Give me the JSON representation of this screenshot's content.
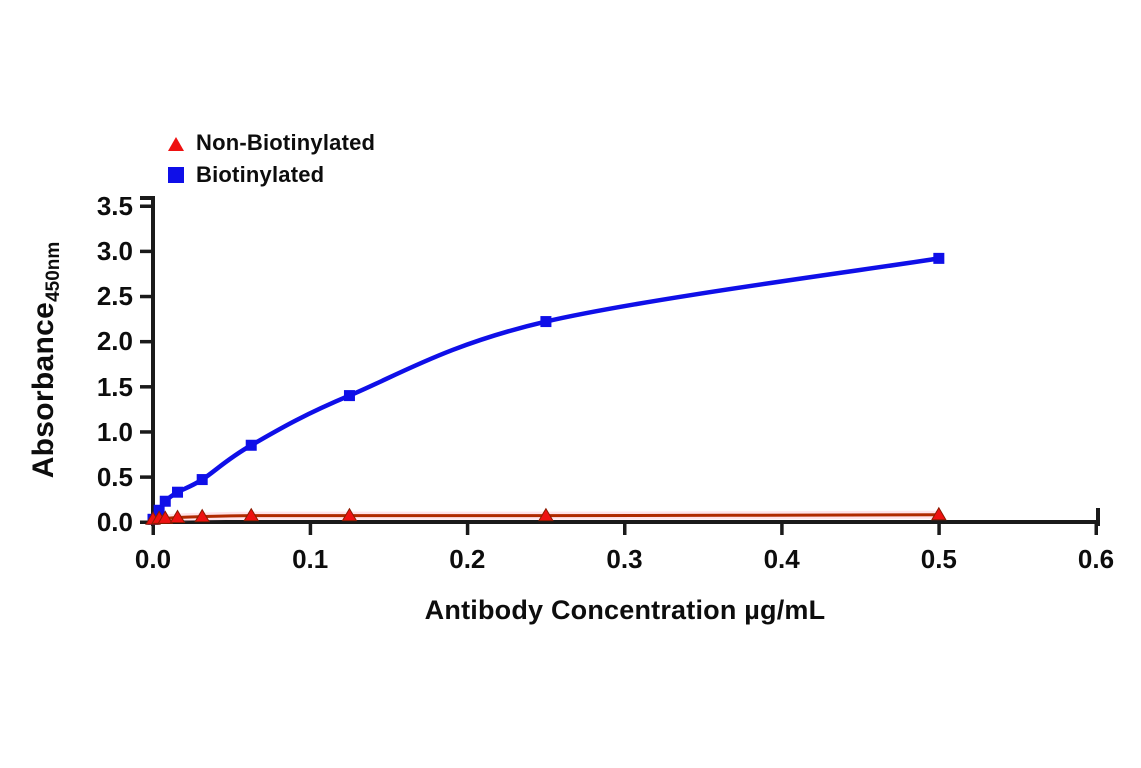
{
  "chart_data": {
    "type": "line",
    "title": "",
    "xlabel": "Antibody Concentration µg/mL",
    "ylabel": "Absorbance",
    "ylabel_subscript": "450nm",
    "xlim": [
      0,
      0.6
    ],
    "ylim": [
      0,
      3.5
    ],
    "grid": false,
    "legend_position": "top-left",
    "xticks": [
      0,
      0.1,
      0.2,
      0.3,
      0.4,
      0.5,
      0.6
    ],
    "xtick_labels": [
      "0.0",
      "0.1",
      "0.2",
      "0.3",
      "0.4",
      "0.5",
      "0.6"
    ],
    "yticks": [
      0,
      0.5,
      1.0,
      1.5,
      2.0,
      2.5,
      3.0,
      3.5
    ],
    "ytick_labels": [
      "0.0",
      "0.5",
      "1.0",
      "1.5",
      "2.0",
      "2.5",
      "3.0",
      "3.5"
    ],
    "x": [
      0,
      0.0039,
      0.0078,
      0.0156,
      0.0313,
      0.0625,
      0.125,
      0.25,
      0.5
    ],
    "series": [
      {
        "name": "Non-Biotinylated",
        "marker": "triangle",
        "marker_color": "#ee1111",
        "marker_edge_color": "#8b1a00",
        "line_color": "#b02a00",
        "glow_color": "#ffccd9",
        "values": [
          0.03,
          0.04,
          0.04,
          0.05,
          0.06,
          0.07,
          0.07,
          0.07,
          0.08
        ]
      },
      {
        "name": "Biotinylated",
        "marker": "square",
        "marker_color": "#0f0fe8",
        "marker_edge_color": "#0f0fe8",
        "line_color": "#0f0fe8",
        "glow_color": "",
        "values": [
          0.03,
          0.13,
          0.23,
          0.33,
          0.47,
          0.85,
          1.4,
          2.22,
          2.92
        ]
      }
    ],
    "colors": {
      "axis": "#1a1a1a",
      "text": "#0d0d0d",
      "background": "#ffffff"
    }
  }
}
